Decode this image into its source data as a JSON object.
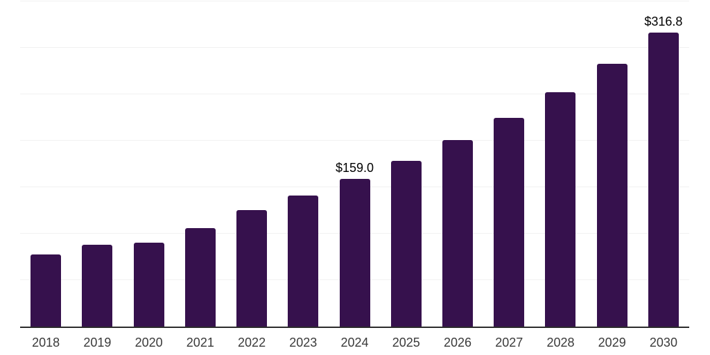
{
  "chart_data": {
    "type": "bar",
    "title": "",
    "xlabel": "",
    "ylabel": "",
    "categories": [
      "2018",
      "2019",
      "2020",
      "2021",
      "2022",
      "2023",
      "2024",
      "2025",
      "2026",
      "2027",
      "2028",
      "2029",
      "2030"
    ],
    "values": [
      77.6,
      88.0,
      90.3,
      106.0,
      125.4,
      141.1,
      159.0,
      178.3,
      200.4,
      224.8,
      251.9,
      282.5,
      316.8
    ],
    "labels": [
      "",
      "",
      "",
      "",
      "",
      "",
      "$159.0",
      "",
      "",
      "",
      "",
      "",
      "$316.8"
    ],
    "ylim": [
      0,
      350
    ],
    "gridline_step": 50,
    "grid": "horizontal",
    "legend": "none",
    "bar_color": "#36114D",
    "gridline_color": "#f1f1f1",
    "axis_line_color": "#2b2b2b",
    "x_label_color": "#3a3a3a",
    "data_label_color": "#000000"
  }
}
